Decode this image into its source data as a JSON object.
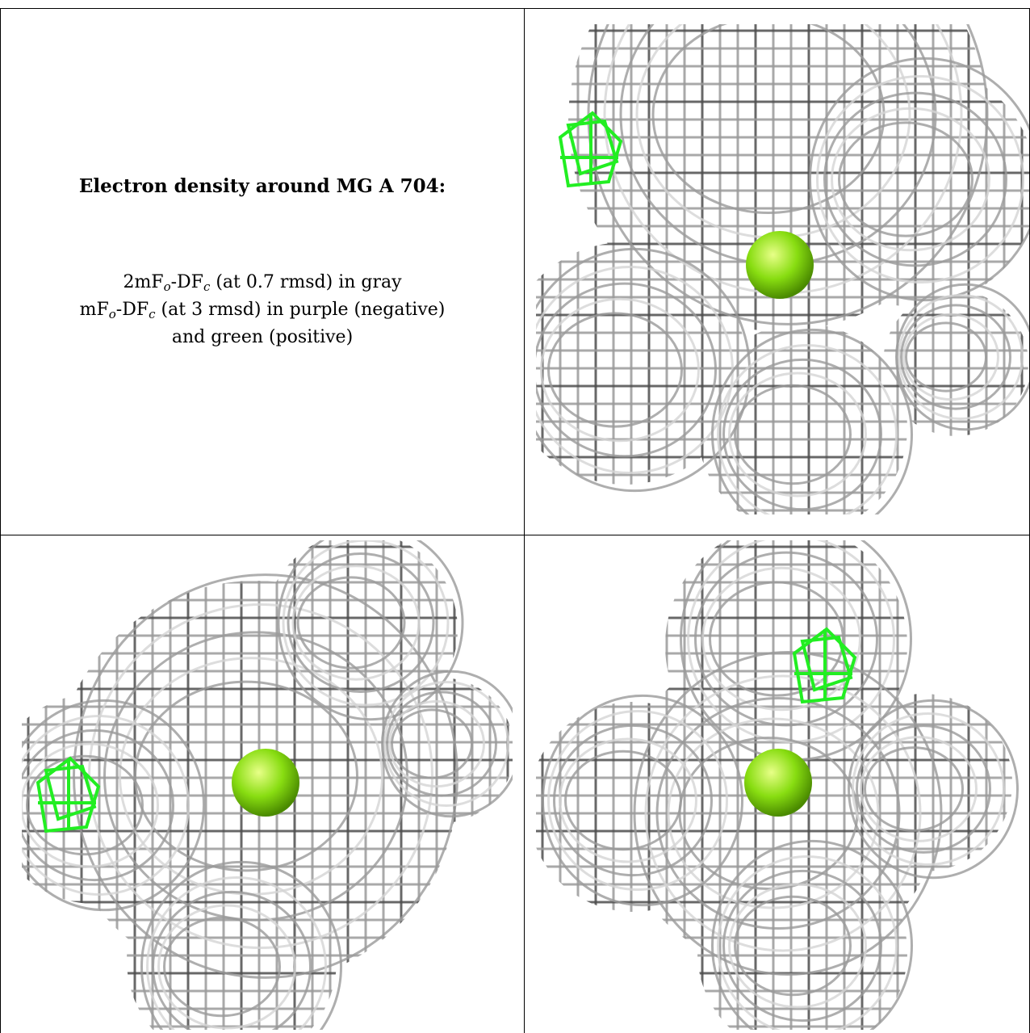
{
  "caption": {
    "title": "Electron density around MG A 704:",
    "lines": [
      {
        "parts": [
          {
            "t": "2mF"
          },
          {
            "sub": "o"
          },
          {
            "t": "-DF"
          },
          {
            "sub": "c"
          },
          {
            "t": " (at 0.7 rmsd) in gray"
          }
        ]
      },
      {
        "parts": [
          {
            "t": "mF"
          },
          {
            "sub": "o"
          },
          {
            "t": "-DF"
          },
          {
            "sub": "c"
          },
          {
            "t": " (at 3 rmsd) in purple (negative)"
          }
        ]
      },
      {
        "parts": [
          {
            "t": "and green (positive)"
          }
        ]
      }
    ]
  },
  "colors": {
    "mesh_gray": "#9a9a9a",
    "mesh_dark": "#4d4d4d",
    "mesh_light": "#d4d4d4",
    "positive_density": "#22ee22",
    "mg_atom": "#88dd11"
  },
  "panels": [
    {
      "name": "density-view-1",
      "icon": "mg-atom-icon",
      "green_mesh": true
    },
    {
      "name": "density-view-2",
      "icon": "mg-atom-icon",
      "green_mesh": true
    },
    {
      "name": "density-view-3",
      "icon": "mg-atom-icon",
      "green_mesh": true
    }
  ]
}
